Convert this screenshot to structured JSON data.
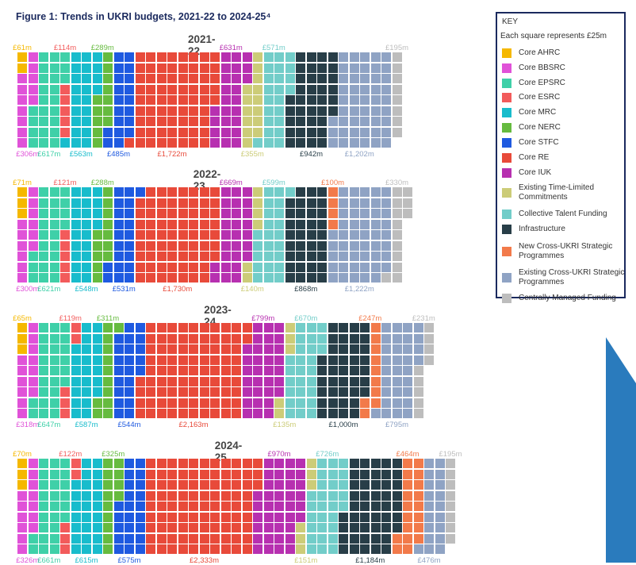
{
  "figure_title": "Figure 1: Trends in UKRI budgets, 2021-22 to 2024-25⁴",
  "key": {
    "title": "KEY",
    "note": "Each square represents £25m",
    "items": [
      {
        "id": "ahrc",
        "label": "Core AHRC",
        "color": "#f5b800"
      },
      {
        "id": "bbsrc",
        "label": "Core BBSRC",
        "color": "#e052d8"
      },
      {
        "id": "epsrc",
        "label": "Core EPSRC",
        "color": "#3fd0a8"
      },
      {
        "id": "esrc",
        "label": "Core ESRC",
        "color": "#f25b5b"
      },
      {
        "id": "mrc",
        "label": "Core MRC",
        "color": "#18bccc"
      },
      {
        "id": "nerc",
        "label": "Core NERC",
        "color": "#66bb3f"
      },
      {
        "id": "stfc",
        "label": "Core STFC",
        "color": "#1f5ae0"
      },
      {
        "id": "re",
        "label": "Core RE",
        "color": "#e84a3a"
      },
      {
        "id": "iuk",
        "label": "Core IUK",
        "color": "#b730b0"
      },
      {
        "id": "tlc",
        "label": "Existing Time-Limited Commitments",
        "color": "#cccc78"
      },
      {
        "id": "ctf",
        "label": "Collective Talent Funding",
        "color": "#72cdc9"
      },
      {
        "id": "inf",
        "label": "Infrastructure",
        "color": "#283e48"
      },
      {
        "id": "ncu",
        "label": "New Cross-UKRI Strategic Programmes",
        "color": "#f27a4a"
      },
      {
        "id": "ecu",
        "label": "Existing Cross-UKRI Strategic Programmes",
        "color": "#8fa3c4"
      },
      {
        "id": "cmf",
        "label": "Centrally Managed Funding",
        "color": "#bdbdbd"
      }
    ]
  },
  "chart_data": [
    {
      "type": "waffle",
      "title": "2021-22",
      "unit": "£m",
      "square_value": 25,
      "values": [
        {
          "id": "ahrc",
          "value": 61,
          "label": "£61m",
          "pos": "top"
        },
        {
          "id": "bbsrc",
          "value": 306,
          "label": "£306m",
          "pos": "bottom"
        },
        {
          "id": "epsrc",
          "value": 617,
          "label": "£617m",
          "pos": "bottom"
        },
        {
          "id": "esrc",
          "value": 114,
          "label": "£114m",
          "pos": "top"
        },
        {
          "id": "mrc",
          "value": 563,
          "label": "£563m",
          "pos": "bottom"
        },
        {
          "id": "nerc",
          "value": 289,
          "label": "£289m",
          "pos": "top"
        },
        {
          "id": "stfc",
          "value": 485,
          "label": "£485m",
          "pos": "bottom"
        },
        {
          "id": "re",
          "value": 1722,
          "label": "£1,722m",
          "pos": "bottom"
        },
        {
          "id": "iuk",
          "value": 631,
          "label": "£631m",
          "pos": "top"
        },
        {
          "id": "tlc",
          "value": 355,
          "label": "£355m",
          "pos": "bottom"
        },
        {
          "id": "ctf",
          "value": 571,
          "label": "£571m",
          "pos": "top"
        },
        {
          "id": "inf",
          "value": 942,
          "label": "£942m",
          "pos": "bottom"
        },
        {
          "id": "ecu",
          "value": 1202,
          "label": "£1,202m",
          "pos": "bottom"
        },
        {
          "id": "cmf",
          "value": 195,
          "label": "£195m",
          "pos": "top"
        }
      ]
    },
    {
      "type": "waffle",
      "title": "2022-23",
      "unit": "£m",
      "square_value": 25,
      "values": [
        {
          "id": "ahrc",
          "value": 71,
          "label": "£71m",
          "pos": "top"
        },
        {
          "id": "bbsrc",
          "value": 300,
          "label": "£300m",
          "pos": "bottom"
        },
        {
          "id": "epsrc",
          "value": 621,
          "label": "£621m",
          "pos": "bottom"
        },
        {
          "id": "esrc",
          "value": 121,
          "label": "£121m",
          "pos": "top"
        },
        {
          "id": "mrc",
          "value": 548,
          "label": "£548m",
          "pos": "bottom"
        },
        {
          "id": "nerc",
          "value": 288,
          "label": "£288m",
          "pos": "top"
        },
        {
          "id": "stfc",
          "value": 531,
          "label": "£531m",
          "pos": "bottom"
        },
        {
          "id": "re",
          "value": 1730,
          "label": "£1,730m",
          "pos": "bottom"
        },
        {
          "id": "iuk",
          "value": 669,
          "label": "£669m",
          "pos": "top"
        },
        {
          "id": "tlc",
          "value": 140,
          "label": "£140m",
          "pos": "bottom"
        },
        {
          "id": "ctf",
          "value": 599,
          "label": "£599m",
          "pos": "top"
        },
        {
          "id": "inf",
          "value": 868,
          "label": "£868m",
          "pos": "bottom"
        },
        {
          "id": "ncu",
          "value": 100,
          "label": "£100m",
          "pos": "top"
        },
        {
          "id": "ecu",
          "value": 1222,
          "label": "£1,222m",
          "pos": "bottom"
        },
        {
          "id": "cmf",
          "value": 330,
          "label": "£330m",
          "pos": "top"
        }
      ]
    },
    {
      "type": "waffle",
      "title": "2023-24",
      "unit": "£m",
      "square_value": 25,
      "values": [
        {
          "id": "ahrc",
          "value": 65,
          "label": "£65m",
          "pos": "top"
        },
        {
          "id": "bbsrc",
          "value": 318,
          "label": "£318m",
          "pos": "bottom"
        },
        {
          "id": "epsrc",
          "value": 647,
          "label": "£647m",
          "pos": "bottom"
        },
        {
          "id": "esrc",
          "value": 119,
          "label": "£119m",
          "pos": "top"
        },
        {
          "id": "mrc",
          "value": 587,
          "label": "£587m",
          "pos": "bottom"
        },
        {
          "id": "nerc",
          "value": 311,
          "label": "£311m",
          "pos": "top"
        },
        {
          "id": "stfc",
          "value": 544,
          "label": "£544m",
          "pos": "bottom"
        },
        {
          "id": "re",
          "value": 2163,
          "label": "£2,163m",
          "pos": "bottom"
        },
        {
          "id": "iuk",
          "value": 799,
          "label": "£799m",
          "pos": "top"
        },
        {
          "id": "tlc",
          "value": 135,
          "label": "£135m",
          "pos": "bottom"
        },
        {
          "id": "ctf",
          "value": 670,
          "label": "£670m",
          "pos": "top"
        },
        {
          "id": "inf",
          "value": 1000,
          "label": "£1,000m",
          "pos": "bottom"
        },
        {
          "id": "ncu",
          "value": 247,
          "label": "£247m",
          "pos": "top"
        },
        {
          "id": "ecu",
          "value": 795,
          "label": "£795m",
          "pos": "bottom"
        },
        {
          "id": "cmf",
          "value": 231,
          "label": "£231m",
          "pos": "top"
        }
      ]
    },
    {
      "type": "waffle",
      "title": "2024-25",
      "unit": "£m",
      "square_value": 25,
      "values": [
        {
          "id": "ahrc",
          "value": 70,
          "label": "£70m",
          "pos": "top"
        },
        {
          "id": "bbsrc",
          "value": 326,
          "label": "£326m",
          "pos": "bottom"
        },
        {
          "id": "epsrc",
          "value": 661,
          "label": "£661m",
          "pos": "bottom"
        },
        {
          "id": "esrc",
          "value": 122,
          "label": "£122m",
          "pos": "top"
        },
        {
          "id": "mrc",
          "value": 615,
          "label": "£615m",
          "pos": "bottom"
        },
        {
          "id": "nerc",
          "value": 325,
          "label": "£325m",
          "pos": "top"
        },
        {
          "id": "stfc",
          "value": 575,
          "label": "£575m",
          "pos": "bottom"
        },
        {
          "id": "re",
          "value": 2333,
          "label": "£2,333m",
          "pos": "bottom"
        },
        {
          "id": "iuk",
          "value": 970,
          "label": "£970m",
          "pos": "top"
        },
        {
          "id": "tlc",
          "value": 151,
          "label": "£151m",
          "pos": "bottom"
        },
        {
          "id": "ctf",
          "value": 726,
          "label": "£726m",
          "pos": "top"
        },
        {
          "id": "inf",
          "value": 1184,
          "label": "£1,184m",
          "pos": "bottom"
        },
        {
          "id": "ncu",
          "value": 464,
          "label": "£464m",
          "pos": "top"
        },
        {
          "id": "ecu",
          "value": 476,
          "label": "£476m",
          "pos": "bottom"
        },
        {
          "id": "cmf",
          "value": 195,
          "label": "£195m",
          "pos": "top"
        }
      ]
    }
  ]
}
